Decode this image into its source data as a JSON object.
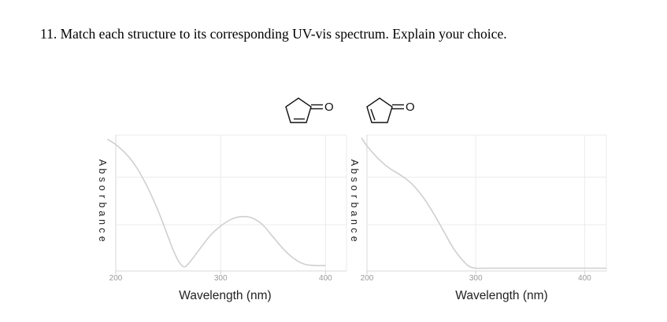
{
  "question": "11. Match each structure to its corresponding UV-vis spectrum.  Explain your choice.",
  "structures": [
    {
      "name": "cyclopent-3-en-1-one",
      "carbonyl_label": "O"
    },
    {
      "name": "cyclopent-2-en-1-one",
      "carbonyl_label": "O"
    }
  ],
  "colors": {
    "curve": "#cfcfcf",
    "grid": "#ebebeb",
    "tick": "#9a9a9a",
    "text": "#222222"
  },
  "chart_data": [
    {
      "type": "line",
      "title": "",
      "xlabel": "Wavelength (nm)",
      "ylabel": "Absorbance",
      "xlim": [
        200,
        420
      ],
      "ylim": [
        0,
        1
      ],
      "xticks": [
        200,
        300,
        400
      ],
      "grid": true,
      "y_ticks_shown": false,
      "series": [
        {
          "x": [
            192,
            200,
            210,
            220,
            230,
            240,
            250,
            255,
            260,
            265,
            270,
            280,
            290,
            300,
            310,
            320,
            330,
            340,
            350,
            360,
            370,
            380,
            390,
            400
          ],
          "y": [
            0.97,
            0.93,
            0.86,
            0.76,
            0.62,
            0.45,
            0.25,
            0.15,
            0.07,
            0.03,
            0.06,
            0.16,
            0.26,
            0.33,
            0.38,
            0.4,
            0.39,
            0.34,
            0.25,
            0.16,
            0.09,
            0.05,
            0.04,
            0.04
          ]
        }
      ]
    },
    {
      "type": "line",
      "title": "",
      "xlabel": "Wavelength (nm)",
      "ylabel": "Absorbance",
      "xlim": [
        200,
        420
      ],
      "ylim": [
        0,
        1
      ],
      "xticks": [
        200,
        300,
        400
      ],
      "grid": true,
      "y_ticks_shown": false,
      "series": [
        {
          "x": [
            195,
            200,
            210,
            220,
            230,
            240,
            250,
            260,
            270,
            280,
            290,
            295,
            300,
            310,
            320,
            340,
            360,
            380,
            400,
            420
          ],
          "y": [
            0.98,
            0.92,
            0.83,
            0.76,
            0.71,
            0.65,
            0.56,
            0.44,
            0.3,
            0.16,
            0.06,
            0.03,
            0.02,
            0.02,
            0.02,
            0.02,
            0.02,
            0.02,
            0.02,
            0.02
          ]
        }
      ]
    }
  ]
}
